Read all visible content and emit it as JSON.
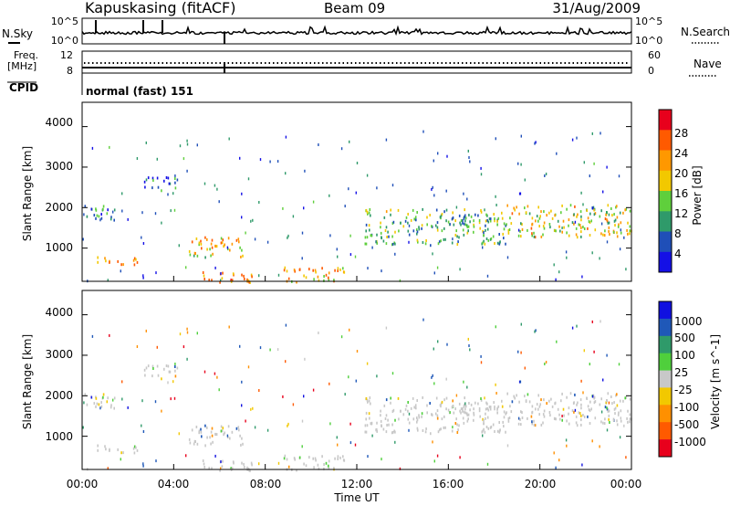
{
  "header": {
    "station": "Kapuskasing (fitACF)",
    "beam": "Beam 09",
    "date": "31/Aug/2009"
  },
  "strips": {
    "nsky_label": "N.Sky",
    "nsearch_label": "N.Search",
    "noise_ticks_left": [
      "10^5",
      "10^0"
    ],
    "noise_ticks_right": [
      "10^5",
      "10^0"
    ],
    "freq_label": "Freq.",
    "freq_unit": "[MHz]",
    "freq_ticks": [
      "12",
      "8"
    ],
    "nave_label": "Nave",
    "nave_ticks": [
      "60",
      "0"
    ],
    "cpid_label": "CPID",
    "cpid_value": "normal (fast) 151"
  },
  "power_panel": {
    "ylabel": "Slant Range [km]",
    "yticks": [
      "4000",
      "3000",
      "2000",
      "1000"
    ],
    "colorbar_label": "Power [dB]",
    "colorbar_ticks": [
      "28",
      "24",
      "20",
      "16",
      "12",
      "8",
      "4"
    ],
    "colorbar_colors": [
      "#e8001c",
      "#ff5a00",
      "#ff9800",
      "#f2c800",
      "#5fcf3c",
      "#2f9a6a",
      "#1f4fb8",
      "#1410e6"
    ]
  },
  "velocity_panel": {
    "ylabel": "Slant Range [km]",
    "yticks": [
      "4000",
      "3000",
      "2000",
      "1000"
    ],
    "colorbar_label": "Velocity [m s^-1]",
    "colorbar_ticks": [
      "1000",
      "500",
      "100",
      "25",
      "-25",
      "-100",
      "-500",
      "-1000"
    ],
    "colorbar_colors": [
      "#1010e0",
      "#1f58b8",
      "#2f9a6a",
      "#4fcf3c",
      "#c8c8c8",
      "#f2c800",
      "#ff9000",
      "#ff5a00",
      "#e8001c"
    ]
  },
  "x_axis": {
    "label": "Time UT",
    "ticks": [
      "00:00",
      "04:00",
      "08:00",
      "12:00",
      "16:00",
      "20:00",
      "00:00"
    ]
  },
  "chart_data": [
    {
      "type": "heatmap",
      "title": "Power",
      "xlabel": "Time UT",
      "ylabel": "Slant Range [km]",
      "xlim": [
        "00:00",
        "24:00"
      ],
      "ylim": [
        180,
        4600
      ],
      "colorbar": {
        "label": "Power [dB]",
        "range": [
          0,
          30
        ]
      },
      "echo_regions": [
        {
          "t_start_h": 0.1,
          "t_end_h": 1.5,
          "range_min_km": 1700,
          "range_max_km": 2100,
          "db": 8
        },
        {
          "t_start_h": 0.5,
          "t_end_h": 2.5,
          "range_min_km": 600,
          "range_max_km": 800,
          "db": 20
        },
        {
          "t_start_h": 2.7,
          "t_end_h": 4.2,
          "range_min_km": 2450,
          "range_max_km": 2800,
          "db": 6
        },
        {
          "t_start_h": 4.6,
          "t_end_h": 7.0,
          "range_min_km": 800,
          "range_max_km": 1300,
          "db": 18
        },
        {
          "t_start_h": 5.0,
          "t_end_h": 7.5,
          "range_min_km": 180,
          "range_max_km": 450,
          "db": 22
        },
        {
          "t_start_h": 8.8,
          "t_end_h": 11.5,
          "range_min_km": 180,
          "range_max_km": 550,
          "db": 20
        },
        {
          "t_start_h": 12.3,
          "t_end_h": 18.5,
          "range_min_km": 1100,
          "range_max_km": 2000,
          "db": 12
        },
        {
          "t_start_h": 18.5,
          "t_end_h": 24.0,
          "range_min_km": 1300,
          "range_max_km": 2100,
          "db": 16
        }
      ]
    },
    {
      "type": "heatmap",
      "title": "Velocity",
      "xlabel": "Time UT",
      "ylabel": "Slant Range [km]",
      "xlim": [
        "00:00",
        "24:00"
      ],
      "ylim": [
        180,
        4600
      ],
      "colorbar": {
        "label": "Velocity [m s^-1]",
        "range": [
          -1000,
          1000
        ]
      },
      "echo_regions": [
        {
          "t_start_h": 0.1,
          "t_end_h": 1.5,
          "range_min_km": 1700,
          "range_max_km": 2100,
          "velocity": 0
        },
        {
          "t_start_h": 0.5,
          "t_end_h": 2.5,
          "range_min_km": 600,
          "range_max_km": 800,
          "velocity": 0
        },
        {
          "t_start_h": 2.7,
          "t_end_h": 4.2,
          "range_min_km": 2450,
          "range_max_km": 2800,
          "velocity": 0
        },
        {
          "t_start_h": 4.6,
          "t_end_h": 7.0,
          "range_min_km": 800,
          "range_max_km": 1300,
          "velocity": 0
        },
        {
          "t_start_h": 5.0,
          "t_end_h": 7.5,
          "range_min_km": 180,
          "range_max_km": 450,
          "velocity": 0
        },
        {
          "t_start_h": 8.8,
          "t_end_h": 11.5,
          "range_min_km": 180,
          "range_max_km": 550,
          "velocity": 0
        },
        {
          "t_start_h": 12.3,
          "t_end_h": 18.5,
          "range_min_km": 1100,
          "range_max_km": 2000,
          "velocity": 0
        },
        {
          "t_start_h": 18.5,
          "t_end_h": 24.0,
          "range_min_km": 1300,
          "range_max_km": 2100,
          "velocity": 0
        }
      ]
    }
  ]
}
